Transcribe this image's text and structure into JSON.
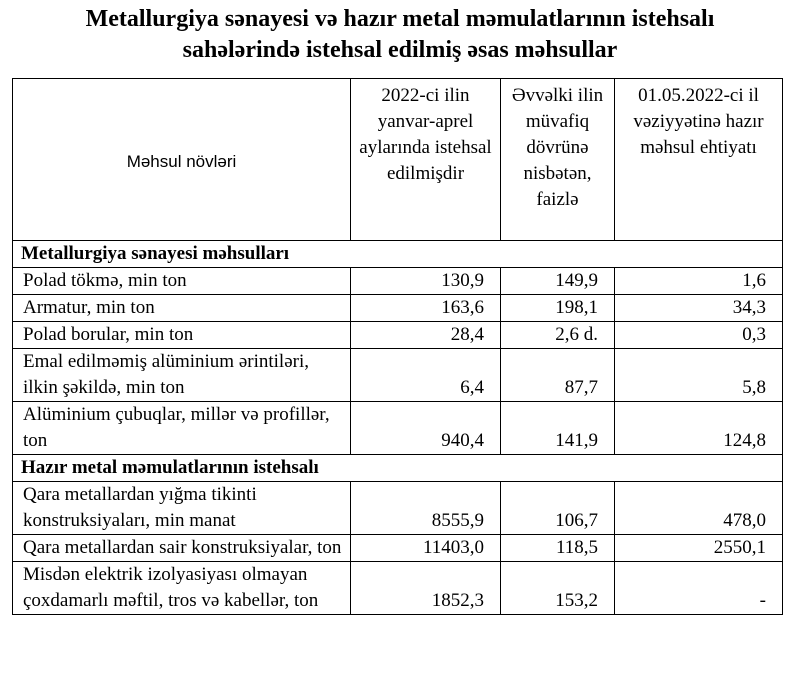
{
  "title_lines": [
    "Metallurgiya sənayesi və hazır metal məmulatlarının istehsalı",
    "sahələrində istehsal edilmiş əsas məhsullar"
  ],
  "table": {
    "header": [
      "Məhsul növləri",
      "2022-ci ilin yanvar-aprel aylarında istehsal edilmişdir",
      "Əvvəlki ilin müvafiq dövrünə nisbətən, faizlə",
      "01.05.2022-ci il vəziyyətinə hazır məhsul ehtiyatı"
    ],
    "sections": [
      {
        "name": "Metallurgiya sənayesi məhsulları",
        "rows": [
          [
            "Polad tökmə, min ton",
            "130,9",
            "149,9",
            "1,6"
          ],
          [
            "Armatur, min ton",
            "163,6",
            "198,1",
            "34,3"
          ],
          [
            "Polad borular,  min ton",
            "28,4",
            "2,6 d.",
            "0,3"
          ],
          [
            "Emal edilməmiş alüminium ərintiləri, ilkin şəkildə, min ton",
            "6,4",
            "87,7",
            "5,8"
          ],
          [
            "Alüminium çubuqlar, millər və profillər, ton",
            "940,4",
            "141,9",
            "124,8"
          ]
        ]
      },
      {
        "name": "Hazır metal məmulatlarının istehsalı",
        "rows": [
          [
            "Qara metallardan yığma tikinti konstruksiyaları, min manat",
            "8555,9",
            "106,7",
            "478,0"
          ],
          [
            "Qara metallardan sair konstruksiyalar, ton",
            "11403,0",
            "118,5",
            "2550,1"
          ],
          [
            "Misdən elektrik izolyasiyası olmayan çoxdamarlı məftil, tros və kabellər, ton",
            "1852,3",
            "153,2",
            "-"
          ]
        ]
      }
    ]
  }
}
